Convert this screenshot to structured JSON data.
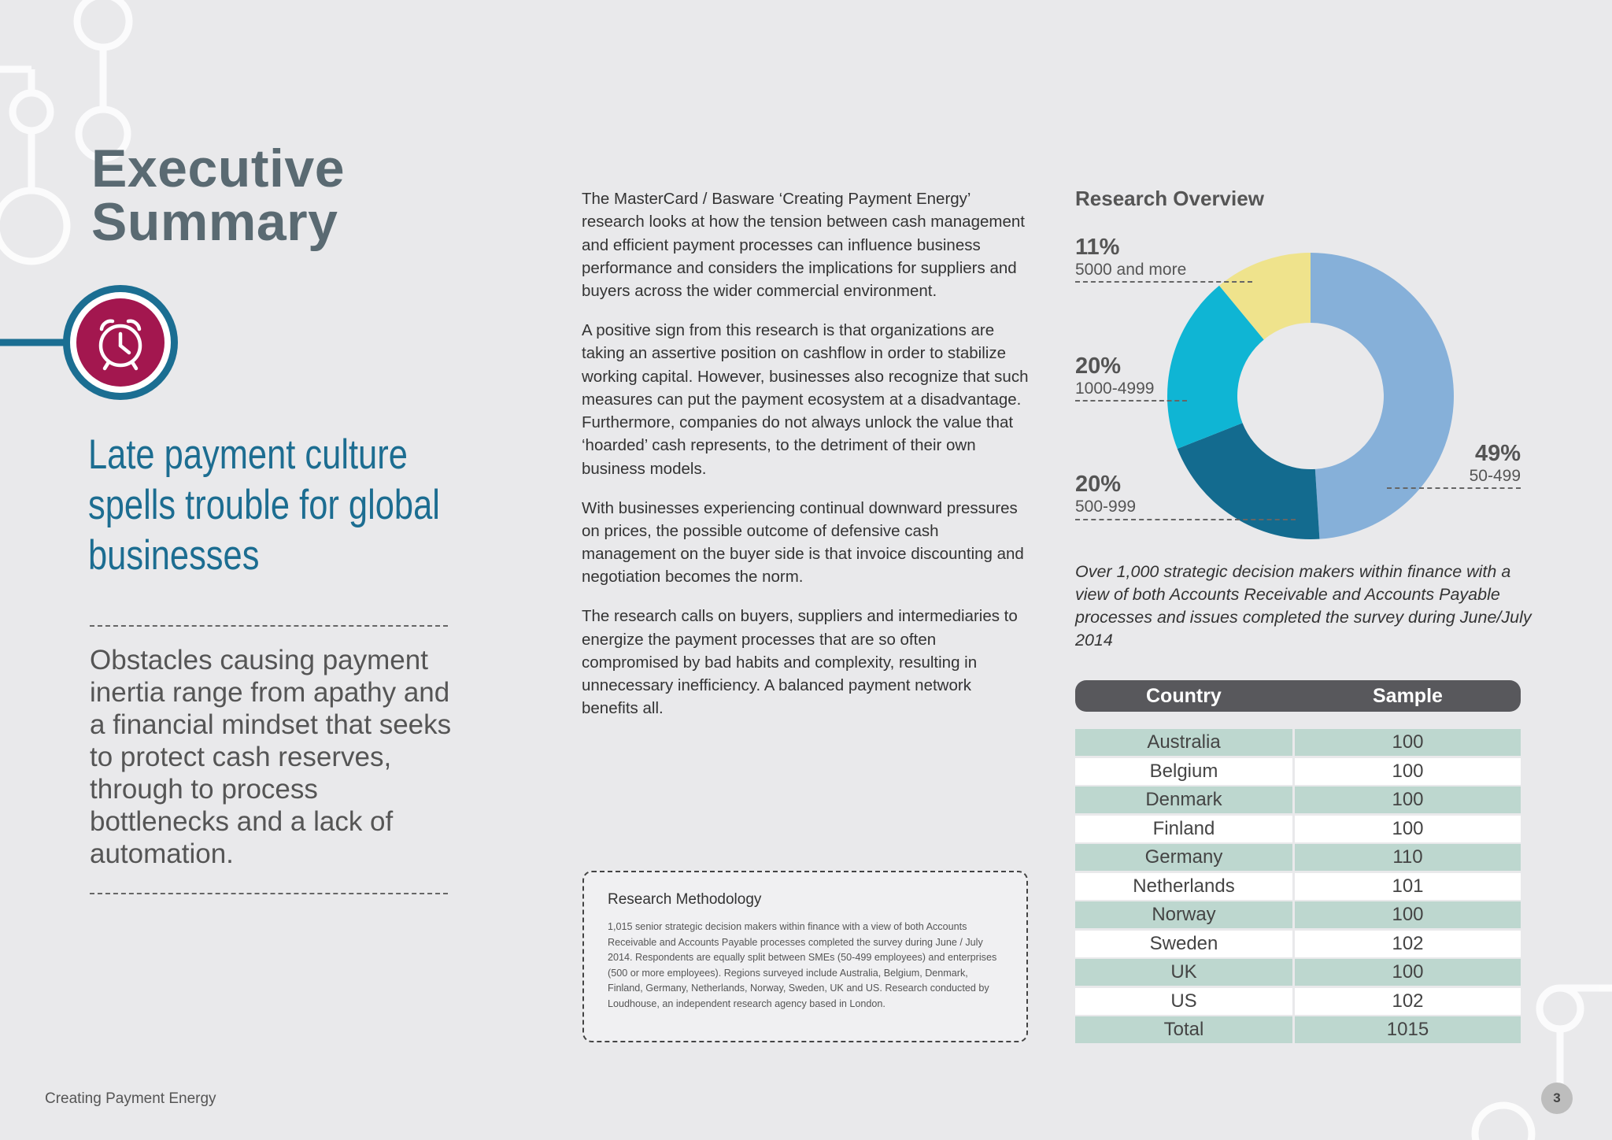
{
  "header": {
    "title_line1": "Executive",
    "title_line2": "Summary"
  },
  "left": {
    "icon": "alarm-clock-icon",
    "subtitle": "Late payment culture spells trouble for global businesses",
    "quote": "Obstacles causing payment inertia range from apathy and a financial mindset that seeks to protect cash reserves, through to process bottlenecks and a lack of automation."
  },
  "body": {
    "paragraphs": [
      "The MasterCard / Basware ‘Creating Payment Energy’ research looks at how the tension between cash management and efficient payment processes can influence business performance and considers the implications for suppliers and buyers across the wider commercial environment.",
      "A positive sign from this research is that organizations are taking an assertive position on cashflow in order to stabilize working capital. However, businesses also recognize that such measures can put the payment ecosystem at a disadvantage. Furthermore, companies do not always unlock the value that ‘hoarded’ cash represents, to the detriment of their own business models.",
      "With businesses experiencing continual downward pressures on prices, the possible outcome of defensive cash management on the buyer side is that invoice discounting and negotiation becomes the norm.",
      "The research calls on buyers, suppliers and intermediaries to energize the payment processes that are so often compromised by bad habits and complexity, resulting in unnecessary inefficiency. A balanced payment network benefits all."
    ]
  },
  "methodology": {
    "title": "Research Methodology",
    "text": "1,015 senior strategic decision makers within finance with a view of both Accounts Receivable and Accounts Payable processes completed the survey during June / July 2014. Respondents are equally split between SMEs (50-499 employees) and enterprises (500 or more employees). Regions surveyed include Australia, Belgium, Denmark, Finland, Germany, Netherlands, Norway, Sweden, UK and US. Research conducted by Loudhouse, an independent research agency based in London."
  },
  "chart_data": {
    "type": "pie",
    "title": "Research Overview",
    "slices": [
      {
        "label": "50-499",
        "value": 49,
        "display": "49%",
        "color": "#86b0d9"
      },
      {
        "label": "500-999",
        "value": 20,
        "display": "20%",
        "color": "#136b8f"
      },
      {
        "label": "1000-4999",
        "value": 20,
        "display": "20%",
        "color": "#0fb5d4"
      },
      {
        "label": "5000 and more",
        "value": 11,
        "display": "11%",
        "color": "#efe38c"
      }
    ],
    "donut": true
  },
  "survey_note": "Over 1,000 strategic decision makers within finance with a view of both Accounts Receivable and Accounts Payable processes and issues completed the survey during June/July 2014",
  "table": {
    "headers": [
      "Country",
      "Sample"
    ],
    "rows": [
      [
        "Australia",
        "100"
      ],
      [
        "Belgium",
        "100"
      ],
      [
        "Denmark",
        "100"
      ],
      [
        "Finland",
        "100"
      ],
      [
        "Germany",
        "110"
      ],
      [
        "Netherlands",
        "101"
      ],
      [
        "Norway",
        "100"
      ],
      [
        "Sweden",
        "102"
      ],
      [
        "UK",
        "100"
      ],
      [
        "US",
        "102"
      ],
      [
        "Total",
        "1015"
      ]
    ]
  },
  "footer": {
    "text": "Creating Payment Energy",
    "page": "3"
  },
  "colors": {
    "background": "#e9e9eb",
    "title": "#5a6a72",
    "subtitle": "#1c6d91",
    "icon_ring": "#1b6e92",
    "icon_fill": "#a3174f"
  }
}
